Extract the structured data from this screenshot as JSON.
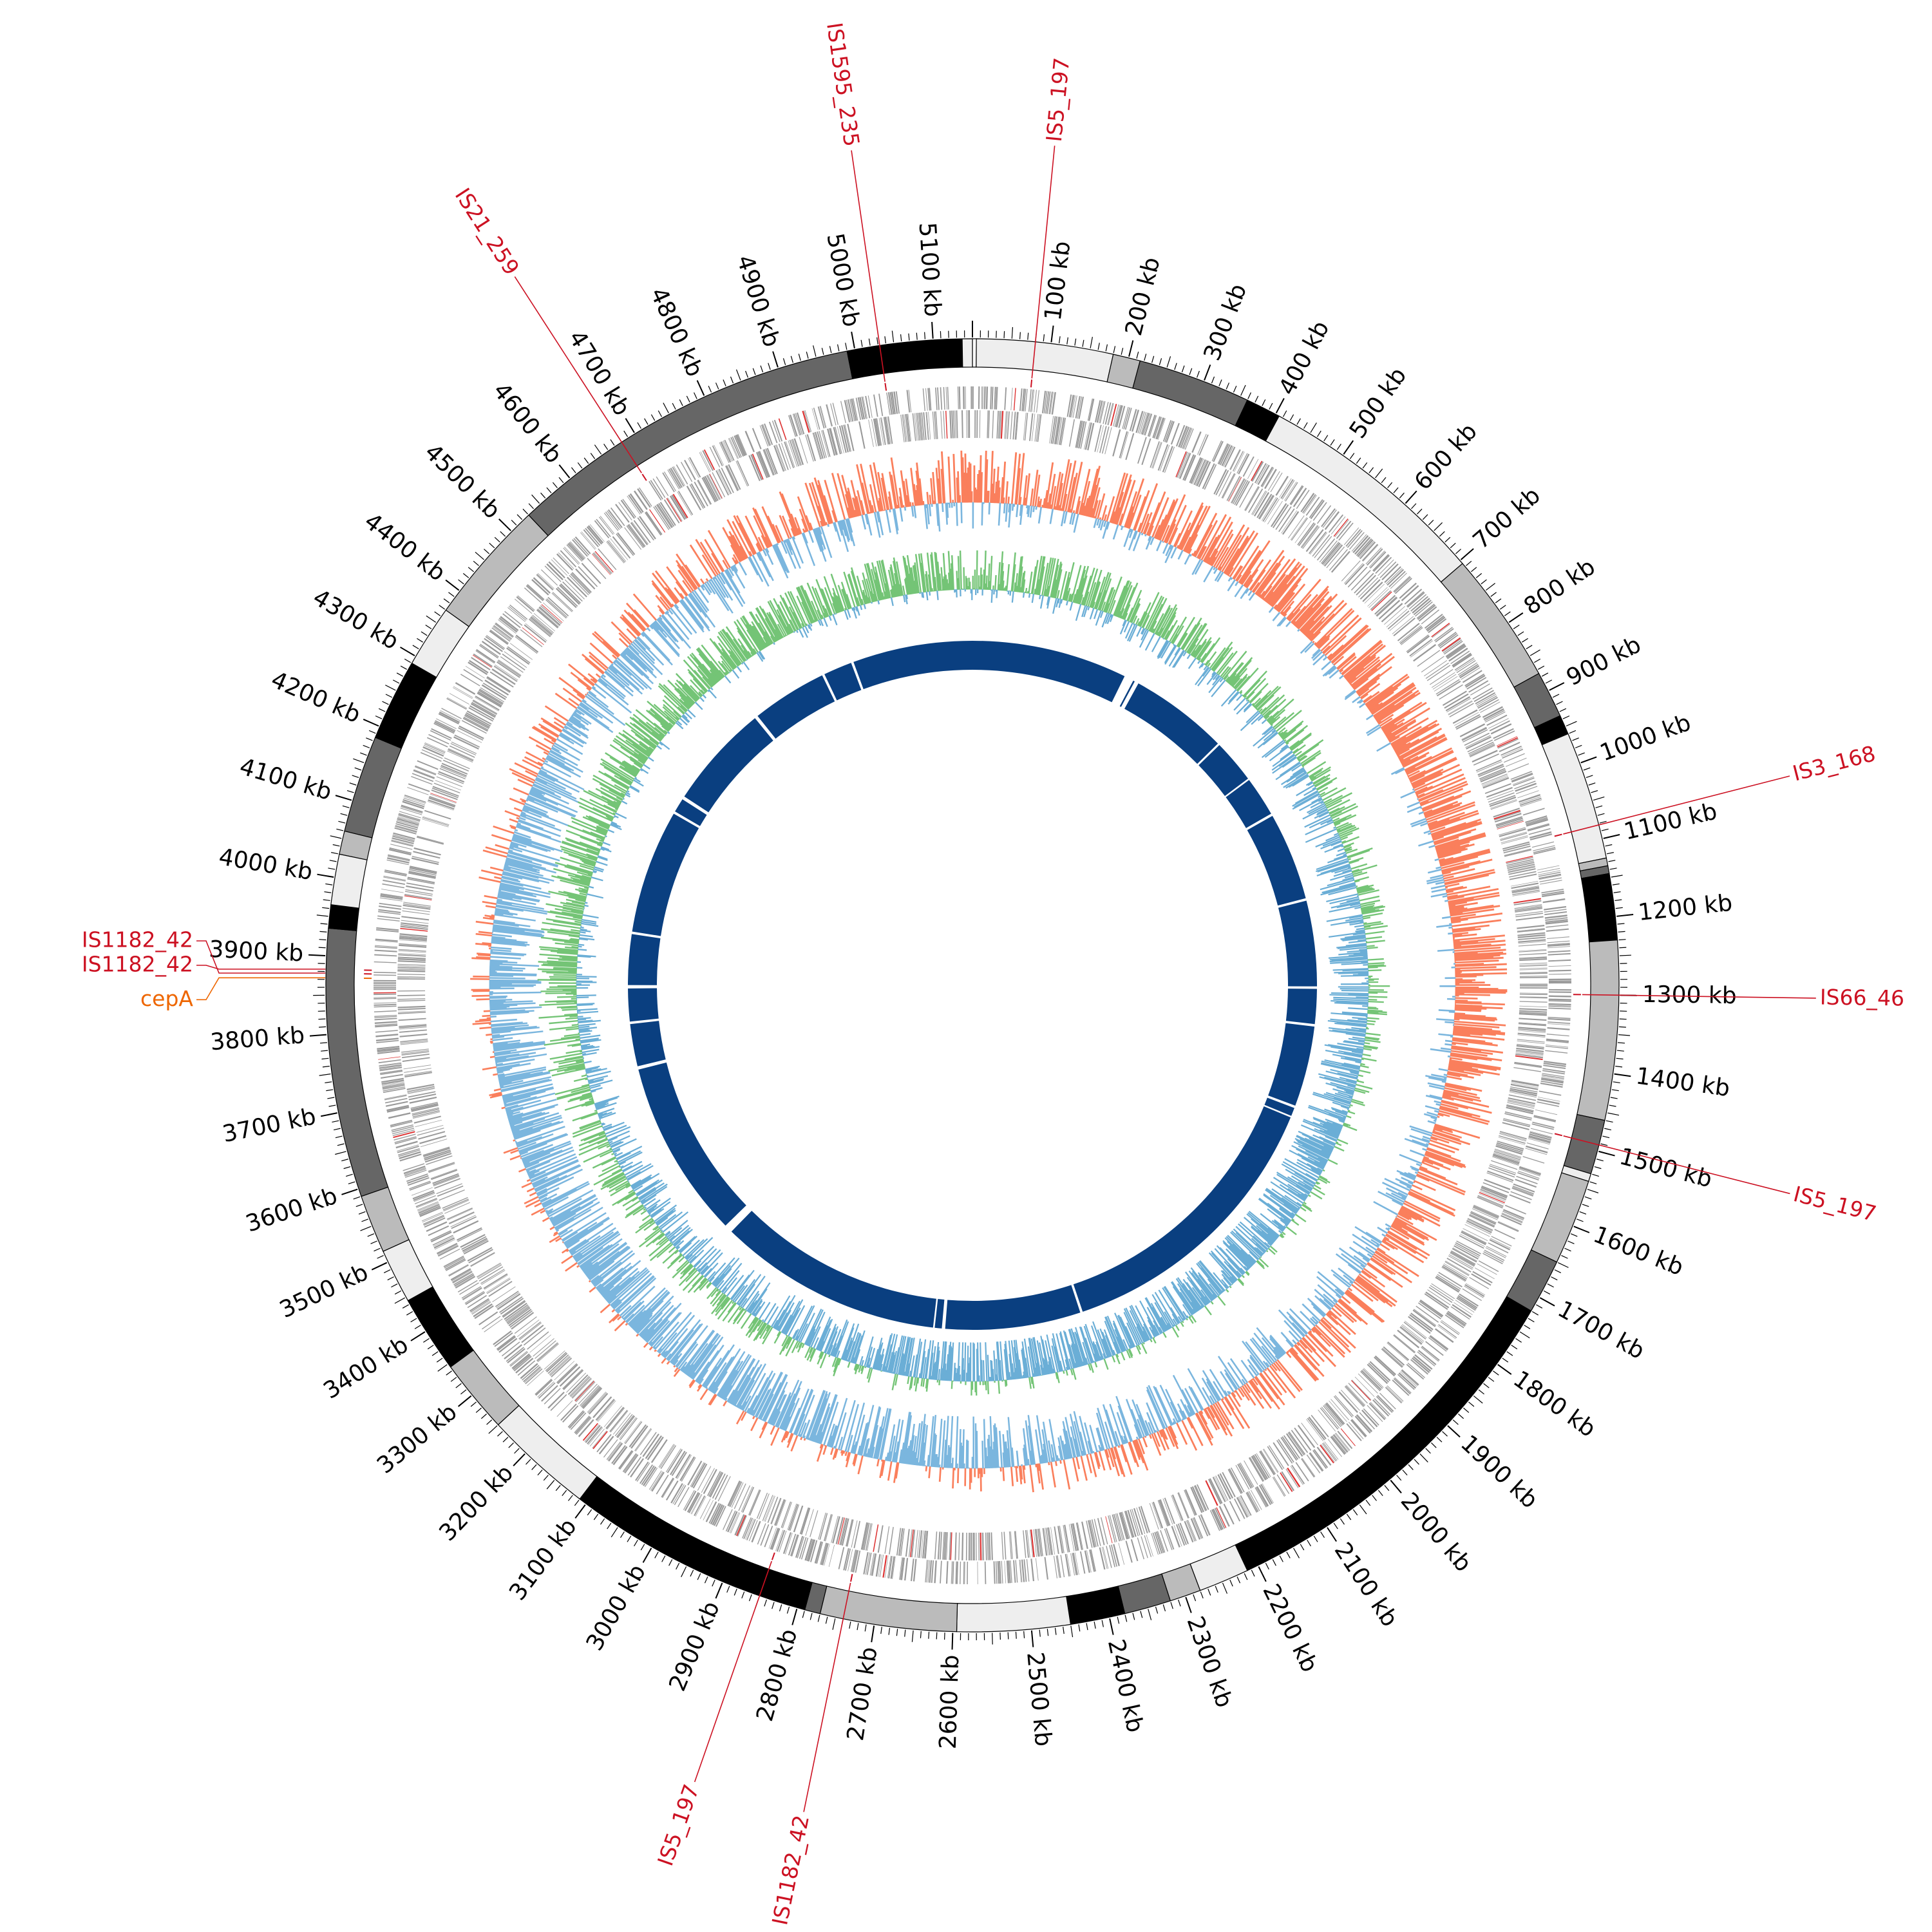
{
  "genome": {
    "length_kb": 5150,
    "tick_labels": [
      "100 kb",
      "200 kb",
      "300 kb",
      "400 kb",
      "500 kb",
      "600 kb",
      "700 kb",
      "800 kb",
      "900 kb",
      "1000 kb",
      "1100 kb",
      "1200 kb",
      "1300 kb",
      "1400 kb",
      "1500 kb",
      "1600 kb",
      "1700 kb",
      "1800 kb",
      "1900 kb",
      "2000 kb",
      "2100 kb",
      "2200 kb",
      "2300 kb",
      "2400 kb",
      "2500 kb",
      "2600 kb",
      "2700 kb",
      "2800 kb",
      "2900 kb",
      "3000 kb",
      "3100 kb",
      "3200 kb",
      "3300 kb",
      "3400 kb",
      "3500 kb",
      "3600 kb",
      "3700 kb",
      "3800 kb",
      "3900 kb",
      "4000 kb",
      "4100 kb",
      "4200 kb",
      "4300 kb",
      "4400 kb",
      "4500 kb",
      "4600 kb",
      "4700 kb",
      "4800 kb",
      "4900 kb",
      "5000 kb",
      "5100 kb"
    ]
  },
  "contig_blocks": [
    {
      "start": 0,
      "end": 5,
      "color": "#ffffff"
    },
    {
      "start": 5,
      "end": 180,
      "color": "#eeeeee"
    },
    {
      "start": 180,
      "end": 215,
      "color": "#bbbbbb"
    },
    {
      "start": 215,
      "end": 360,
      "color": "#666666"
    },
    {
      "start": 360,
      "end": 405,
      "color": "#000000"
    },
    {
      "start": 405,
      "end": 705,
      "color": "#eeeeee"
    },
    {
      "start": 705,
      "end": 875,
      "color": "#bbbbbb"
    },
    {
      "start": 875,
      "end": 935,
      "color": "#666666"
    },
    {
      "start": 935,
      "end": 960,
      "color": "#000000"
    },
    {
      "start": 960,
      "end": 1125,
      "color": "#eeeeee"
    },
    {
      "start": 1125,
      "end": 1135,
      "color": "#bbbbbb"
    },
    {
      "start": 1135,
      "end": 1145,
      "color": "#666666"
    },
    {
      "start": 1145,
      "end": 1230,
      "color": "#000000"
    },
    {
      "start": 1230,
      "end": 1460,
      "color": "#bbbbbb"
    },
    {
      "start": 1460,
      "end": 1530,
      "color": "#666666"
    },
    {
      "start": 1530,
      "end": 1540,
      "color": "#eeeeee"
    },
    {
      "start": 1540,
      "end": 1650,
      "color": "#bbbbbb"
    },
    {
      "start": 1650,
      "end": 1720,
      "color": "#666666"
    },
    {
      "start": 1720,
      "end": 2215,
      "color": "#000000"
    },
    {
      "start": 2215,
      "end": 2280,
      "color": "#eeeeee"
    },
    {
      "start": 2280,
      "end": 2320,
      "color": "#bbbbbb"
    },
    {
      "start": 2320,
      "end": 2380,
      "color": "#666666"
    },
    {
      "start": 2380,
      "end": 2450,
      "color": "#000000"
    },
    {
      "start": 2450,
      "end": 2595,
      "color": "#eeeeee"
    },
    {
      "start": 2595,
      "end": 2770,
      "color": "#bbbbbb"
    },
    {
      "start": 2770,
      "end": 2790,
      "color": "#666666"
    },
    {
      "start": 2790,
      "end": 3110,
      "color": "#000000"
    },
    {
      "start": 3110,
      "end": 3250,
      "color": "#eeeeee"
    },
    {
      "start": 3250,
      "end": 3345,
      "color": "#bbbbbb"
    },
    {
      "start": 3345,
      "end": 3445,
      "color": "#000000"
    },
    {
      "start": 3445,
      "end": 3515,
      "color": "#eeeeee"
    },
    {
      "start": 3515,
      "end": 3590,
      "color": "#bbbbbb"
    },
    {
      "start": 3590,
      "end": 3935,
      "color": "#666666"
    },
    {
      "start": 3935,
      "end": 3965,
      "color": "#000000"
    },
    {
      "start": 3965,
      "end": 4030,
      "color": "#eeeeee"
    },
    {
      "start": 4030,
      "end": 4060,
      "color": "#bbbbbb"
    },
    {
      "start": 4060,
      "end": 4185,
      "color": "#666666"
    },
    {
      "start": 4185,
      "end": 4290,
      "color": "#000000"
    },
    {
      "start": 4290,
      "end": 4370,
      "color": "#eeeeee"
    },
    {
      "start": 4370,
      "end": 4530,
      "color": "#bbbbbb"
    },
    {
      "start": 4530,
      "end": 4990,
      "color": "#666666"
    },
    {
      "start": 4990,
      "end": 5137,
      "color": "#000000"
    },
    {
      "start": 5137,
      "end": 5150,
      "color": "#eeeeee"
    }
  ],
  "annotations": [
    {
      "label": "IS5_197",
      "pos": 80,
      "color": "#cc1122"
    },
    {
      "label": "IS3_168",
      "pos": 1082,
      "color": "#cc1122"
    },
    {
      "label": "IS66_46",
      "pos": 1300,
      "color": "#cc1122"
    },
    {
      "label": "IS5_197",
      "pos": 1492,
      "color": "#cc1122"
    },
    {
      "label": "IS1182_42",
      "pos": 2740,
      "color": "#cc1122"
    },
    {
      "label": "IS5_197",
      "pos": 2850,
      "color": "#cc1122"
    },
    {
      "label": "cepA",
      "pos": 3872,
      "color": "#ee6600"
    },
    {
      "label": "IS1182_42",
      "pos": 3878,
      "color": "#cc1122"
    },
    {
      "label": "IS1182_42",
      "pos": 3883,
      "color": "#cc1122"
    },
    {
      "label": "IS21_259",
      "pos": 4680,
      "color": "#cc1122"
    },
    {
      "label": "IS1595_235",
      "pos": 5032,
      "color": "#cc1122"
    }
  ],
  "track_colors": {
    "genes": "#999999",
    "gene_marks": "#dd3333",
    "gc_skew_positive": "#fa7f5c",
    "gc_skew_negative": "#7bb6de",
    "gc_content_positive": "#74c476",
    "gc_content_negative": "#6baed6",
    "blast_hits": "#0a3f80"
  },
  "blast_gaps": [
    {
      "start": 375,
      "end": 398
    },
    {
      "start": 402,
      "end": 412
    },
    {
      "start": 650,
      "end": 655
    },
    {
      "start": 760,
      "end": 764
    },
    {
      "start": 860,
      "end": 866
    },
    {
      "start": 1078,
      "end": 1084
    },
    {
      "start": 1290,
      "end": 1296
    },
    {
      "start": 1380,
      "end": 1386
    },
    {
      "start": 1580,
      "end": 1586
    },
    {
      "start": 1606,
      "end": 1610
    },
    {
      "start": 2308,
      "end": 2314
    },
    {
      "start": 2640,
      "end": 2648
    },
    {
      "start": 2665,
      "end": 2669
    },
    {
      "start": 3210,
      "end": 3230
    },
    {
      "start": 3660,
      "end": 3668
    },
    {
      "start": 3770,
      "end": 3776
    },
    {
      "start": 3855,
      "end": 3863
    },
    {
      "start": 3985,
      "end": 3991
    },
    {
      "start": 4290,
      "end": 4296
    },
    {
      "start": 4330,
      "end": 4338
    },
    {
      "start": 4590,
      "end": 4598
    },
    {
      "start": 4780,
      "end": 4786
    },
    {
      "start": 4855,
      "end": 4861
    }
  ]
}
